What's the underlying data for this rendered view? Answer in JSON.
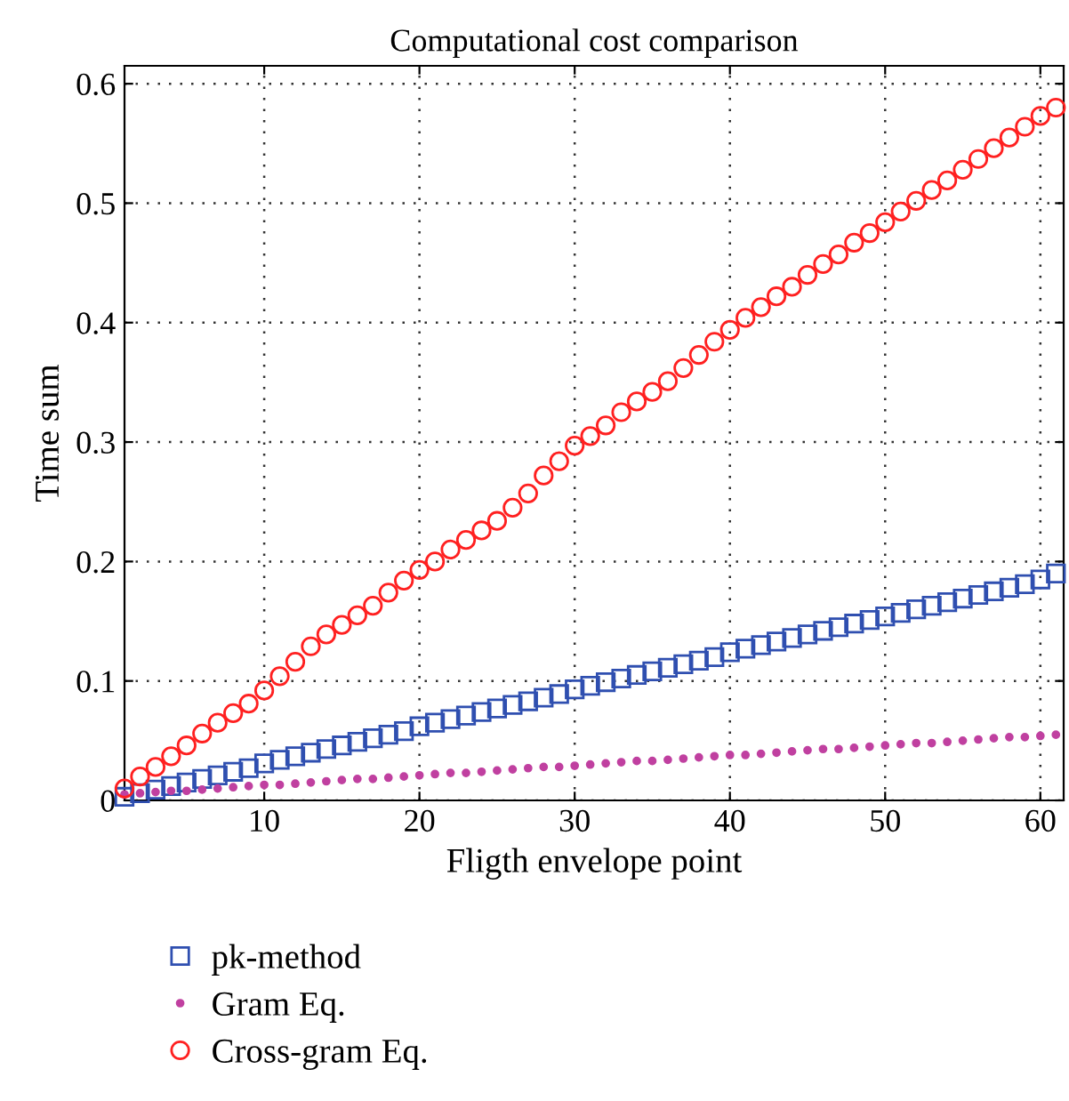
{
  "chart_data": {
    "type": "scatter",
    "title": "Computational cost comparison",
    "xlabel": "Fligth envelope point",
    "ylabel": "Time sum",
    "x": [
      1,
      2,
      3,
      4,
      5,
      6,
      7,
      8,
      9,
      10,
      11,
      12,
      13,
      14,
      15,
      16,
      17,
      18,
      19,
      20,
      21,
      22,
      23,
      24,
      25,
      26,
      27,
      28,
      29,
      30,
      31,
      32,
      33,
      34,
      35,
      36,
      37,
      38,
      39,
      40,
      41,
      42,
      43,
      44,
      45,
      46,
      47,
      48,
      49,
      50,
      51,
      52,
      53,
      54,
      55,
      56,
      57,
      58,
      59,
      60,
      61
    ],
    "xlim": [
      1,
      61.5
    ],
    "xticks": [
      10,
      20,
      30,
      40,
      50,
      60
    ],
    "ylim": [
      0,
      0.615
    ],
    "yticks": [
      0,
      0.1,
      0.2,
      0.3,
      0.4,
      0.5,
      0.6
    ],
    "grid": true,
    "legend": "bottom left",
    "series": [
      {
        "name": "pk-method",
        "color": "#2f4fb0",
        "marker": "square",
        "values": [
          0.003,
          0.006,
          0.009,
          0.012,
          0.015,
          0.018,
          0.021,
          0.024,
          0.027,
          0.031,
          0.034,
          0.037,
          0.04,
          0.043,
          0.046,
          0.049,
          0.052,
          0.055,
          0.058,
          0.062,
          0.065,
          0.068,
          0.071,
          0.074,
          0.077,
          0.08,
          0.083,
          0.086,
          0.089,
          0.093,
          0.096,
          0.099,
          0.102,
          0.105,
          0.108,
          0.111,
          0.114,
          0.117,
          0.12,
          0.124,
          0.127,
          0.13,
          0.133,
          0.136,
          0.139,
          0.142,
          0.145,
          0.148,
          0.151,
          0.154,
          0.157,
          0.16,
          0.163,
          0.166,
          0.169,
          0.172,
          0.175,
          0.178,
          0.181,
          0.185,
          0.19
        ]
      },
      {
        "name": "Gram Eq.",
        "color": "#c040a0",
        "marker": "circle",
        "values": [
          0.005,
          0.006,
          0.007,
          0.008,
          0.008,
          0.009,
          0.01,
          0.011,
          0.012,
          0.013,
          0.013,
          0.014,
          0.015,
          0.016,
          0.017,
          0.018,
          0.018,
          0.019,
          0.02,
          0.021,
          0.022,
          0.023,
          0.023,
          0.024,
          0.025,
          0.026,
          0.027,
          0.028,
          0.028,
          0.029,
          0.03,
          0.031,
          0.032,
          0.033,
          0.033,
          0.034,
          0.035,
          0.036,
          0.037,
          0.038,
          0.038,
          0.039,
          0.04,
          0.041,
          0.042,
          0.043,
          0.043,
          0.044,
          0.045,
          0.046,
          0.047,
          0.048,
          0.048,
          0.049,
          0.05,
          0.051,
          0.052,
          0.053,
          0.053,
          0.054,
          0.055
        ]
      },
      {
        "name": "Cross-gram Eq.",
        "color": "#ff2020",
        "marker": "circle",
        "values": [
          0.01,
          0.02,
          0.028,
          0.037,
          0.046,
          0.056,
          0.065,
          0.073,
          0.081,
          0.092,
          0.104,
          0.116,
          0.129,
          0.139,
          0.147,
          0.155,
          0.163,
          0.174,
          0.184,
          0.193,
          0.2,
          0.21,
          0.218,
          0.226,
          0.234,
          0.245,
          0.257,
          0.272,
          0.284,
          0.297,
          0.305,
          0.314,
          0.325,
          0.334,
          0.342,
          0.351,
          0.362,
          0.373,
          0.384,
          0.394,
          0.404,
          0.413,
          0.422,
          0.43,
          0.44,
          0.449,
          0.457,
          0.467,
          0.475,
          0.484,
          0.493,
          0.502,
          0.511,
          0.519,
          0.528,
          0.537,
          0.546,
          0.555,
          0.564,
          0.573,
          0.58
        ]
      }
    ]
  }
}
